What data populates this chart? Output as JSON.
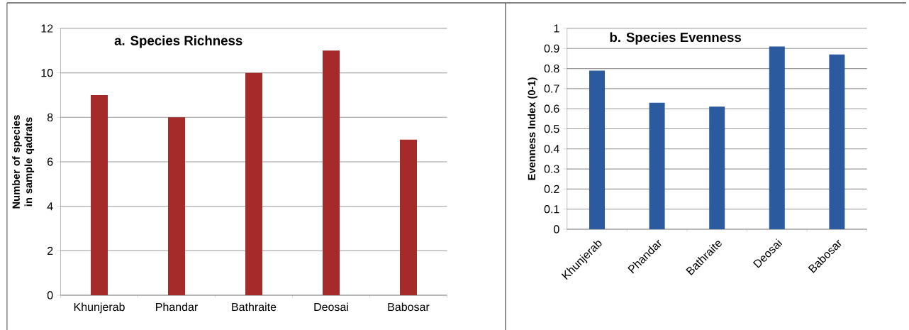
{
  "chart_data": [
    {
      "type": "bar",
      "title": "a. Species Richness",
      "ylabel": "Number of species  in sample qadrats",
      "categories": [
        "Khunjerab",
        "Phandar",
        "Bathraite",
        "Deosai",
        "Babosar"
      ],
      "values": [
        9,
        8,
        10,
        11,
        7
      ],
      "color": "#a52a2a",
      "ylim": [
        0,
        12
      ],
      "yticks": [
        0,
        2,
        4,
        6,
        8,
        10,
        12
      ],
      "grid": "y"
    },
    {
      "type": "bar",
      "title": "b. Species Evenness",
      "ylabel": "Evenness Index (0-1)",
      "categories": [
        "Khunjerab",
        "Phandar",
        "Bathraite",
        "Deosai",
        "Babosar"
      ],
      "values": [
        0.79,
        0.63,
        0.61,
        0.91,
        0.87
      ],
      "color": "#2b5b9e",
      "ylim": [
        0,
        1
      ],
      "yticks": [
        0,
        0.1,
        0.2,
        0.3,
        0.4,
        0.5,
        0.6,
        0.7,
        0.8,
        0.9,
        1
      ],
      "grid": "y"
    }
  ]
}
